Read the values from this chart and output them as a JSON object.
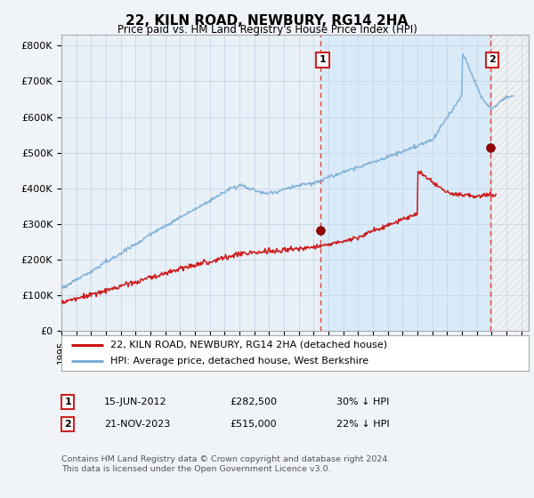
{
  "title": "22, KILN ROAD, NEWBURY, RG14 2HA",
  "subtitle": "Price paid vs. HM Land Registry's House Price Index (HPI)",
  "ylabel_ticks": [
    "£0",
    "£100K",
    "£200K",
    "£300K",
    "£400K",
    "£500K",
    "£600K",
    "£700K",
    "£800K"
  ],
  "ytick_values": [
    0,
    100000,
    200000,
    300000,
    400000,
    500000,
    600000,
    700000,
    800000
  ],
  "ylim": [
    0,
    830000
  ],
  "xlim_start": 1995.0,
  "xlim_end": 2026.5,
  "grid_color": "#c8d8e8",
  "bg_color": "#f0f4f8",
  "plot_bg_left": "#e8f0f8",
  "plot_bg_shade": "#dce8f4",
  "hpi_color": "#7aadd4",
  "price_color": "#cc1111",
  "dashed_color": "#dd4444",
  "marker1_x": 2012.458,
  "marker1_y": 282500,
  "marker2_x": 2023.896,
  "marker2_y": 515000,
  "legend_label1": "22, KILN ROAD, NEWBURY, RG14 2HA (detached house)",
  "legend_label2": "HPI: Average price, detached house, West Berkshire",
  "footer": "Contains HM Land Registry data © Crown copyright and database right 2024.\nThis data is licensed under the Open Government Licence v3.0.",
  "xtick_years": [
    1995,
    1996,
    1997,
    1998,
    1999,
    2000,
    2001,
    2002,
    2003,
    2004,
    2005,
    2006,
    2007,
    2008,
    2009,
    2010,
    2011,
    2012,
    2013,
    2014,
    2015,
    2016,
    2017,
    2018,
    2019,
    2020,
    2021,
    2022,
    2023,
    2024,
    2025,
    2026
  ]
}
